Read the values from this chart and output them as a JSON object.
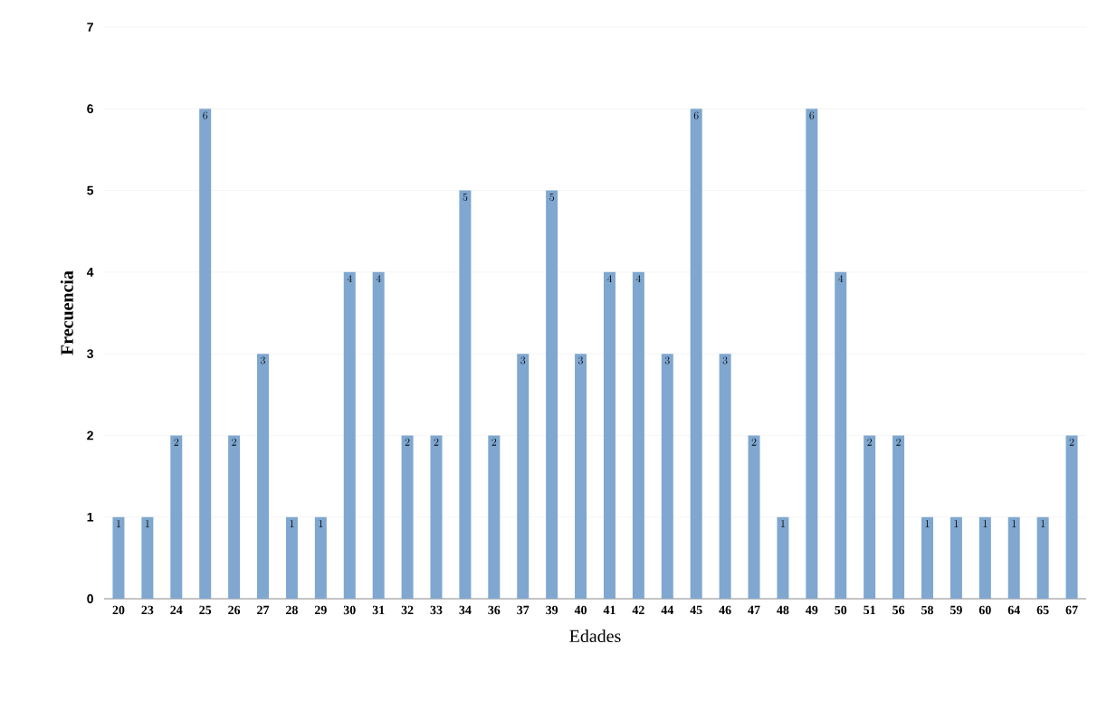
{
  "chart_data": {
    "type": "bar",
    "xlabel": "Edades",
    "ylabel": "Frecuencia",
    "categories": [
      "20",
      "23",
      "24",
      "25",
      "26",
      "27",
      "28",
      "29",
      "30",
      "31",
      "32",
      "33",
      "34",
      "36",
      "37",
      "39",
      "40",
      "41",
      "42",
      "44",
      "45",
      "46",
      "47",
      "48",
      "49",
      "50",
      "51",
      "56",
      "58",
      "59",
      "60",
      "64",
      "65",
      "67"
    ],
    "values": [
      1,
      1,
      2,
      6,
      2,
      3,
      1,
      1,
      4,
      4,
      2,
      2,
      5,
      2,
      3,
      5,
      3,
      4,
      4,
      3,
      6,
      3,
      2,
      1,
      6,
      4,
      2,
      2,
      1,
      1,
      1,
      1,
      1,
      2
    ],
    "color": "#7fa7d0",
    "ylim": [
      0,
      7
    ],
    "yticks": [
      0,
      1,
      2,
      3,
      4,
      5,
      6,
      7
    ],
    "grid": "y",
    "data_labels": true
  }
}
